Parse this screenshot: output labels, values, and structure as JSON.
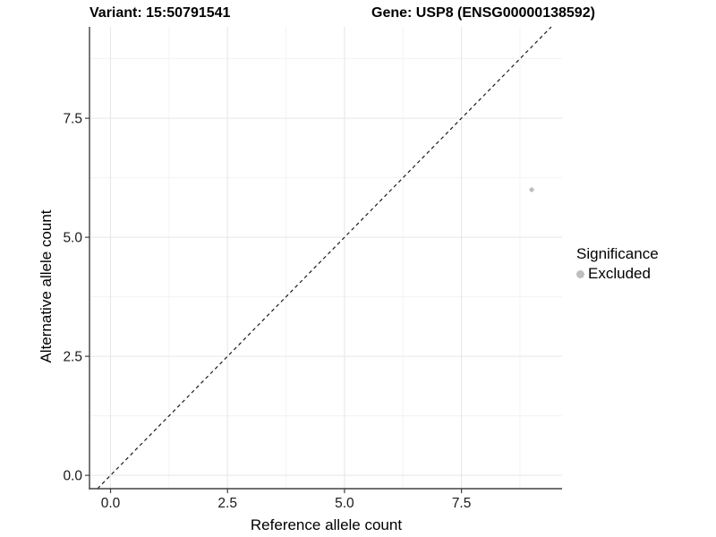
{
  "figure": {
    "title_left": "Variant: 15:50791541",
    "title_right": "Gene: USP8 (ENSG00000138592)"
  },
  "chart_data": {
    "type": "scatter",
    "title_left": "Variant: 15:50791541",
    "title_right": "Gene: USP8 (ENSG00000138592)",
    "xlabel": "Reference allele count",
    "ylabel": "Alternative allele count",
    "xlim": [
      -0.45,
      9.65
    ],
    "ylim": [
      -0.28,
      9.42
    ],
    "x_ticks": [
      0.0,
      2.5,
      5.0,
      7.5
    ],
    "y_ticks": [
      0.0,
      2.5,
      5.0,
      7.5
    ],
    "x_tick_labels": [
      "0.0",
      "2.5",
      "5.0",
      "7.5"
    ],
    "y_tick_labels": [
      "0.0",
      "2.5",
      "5.0",
      "7.5"
    ],
    "x_minor_ticks": [
      1.25,
      3.75,
      6.25,
      8.75
    ],
    "y_minor_ticks": [
      1.25,
      3.75,
      6.25,
      8.75
    ],
    "grid": true,
    "series": [
      {
        "name": "Excluded",
        "marker": "circle",
        "color": "#bebebe",
        "points": [
          {
            "x": 9,
            "y": 6
          }
        ]
      }
    ],
    "reference_line": {
      "type": "identity",
      "slope": 1,
      "intercept": 0,
      "style": "dashed",
      "color": "#1a1a1a"
    },
    "legend": {
      "title": "Significance",
      "position": "right",
      "items": [
        {
          "label": "Excluded",
          "color": "#bebebe",
          "marker": "circle"
        }
      ]
    },
    "colors": {
      "background": "#ffffff",
      "grid_major": "#e8e8e8",
      "grid_minor": "#f3f3f3",
      "axis_line": "#404040",
      "tick_mark": "#404040",
      "tick_text": "#1a1a1a",
      "point": "#bebebe"
    }
  }
}
